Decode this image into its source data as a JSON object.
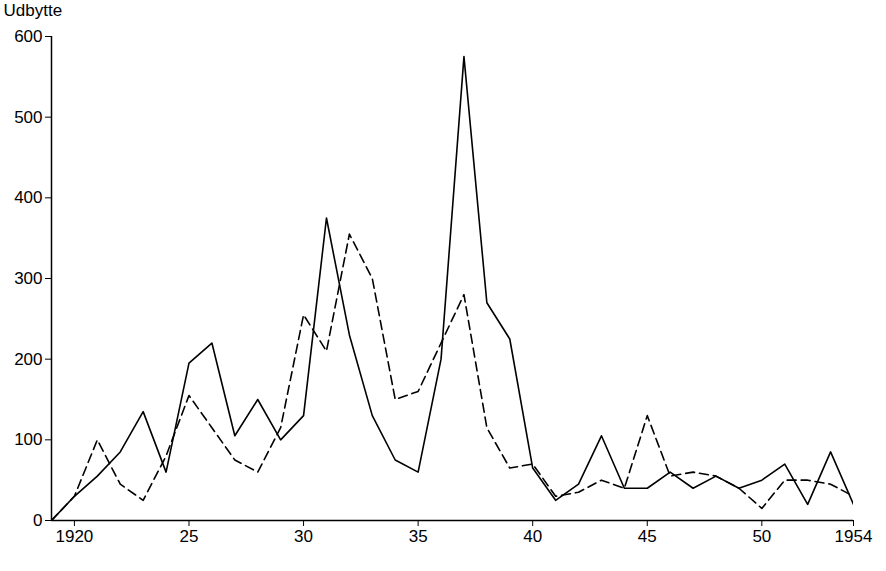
{
  "chart_data": {
    "type": "line",
    "y_label": "Udbytte",
    "x": [
      1919,
      1920,
      1921,
      1922,
      1923,
      1924,
      1925,
      1926,
      1927,
      1928,
      1929,
      1930,
      1931,
      1932,
      1933,
      1934,
      1935,
      1936,
      1937,
      1938,
      1939,
      1940,
      1941,
      1942,
      1943,
      1944,
      1945,
      1946,
      1947,
      1948,
      1949,
      1950,
      1951,
      1952,
      1953,
      1954
    ],
    "series": [
      {
        "color": "#000000",
        "line_style": "solid",
        "values": [
          0,
          30,
          55,
          85,
          135,
          60,
          195,
          220,
          105,
          150,
          100,
          130,
          375,
          230,
          130,
          75,
          60,
          200,
          575,
          270,
          225,
          65,
          25,
          45,
          105,
          40,
          40,
          60,
          40,
          55,
          40,
          50,
          70,
          20,
          85,
          20
        ]
      },
      {
        "color": "#000000",
        "line_style": "dashed",
        "values": [
          0,
          30,
          100,
          45,
          25,
          80,
          155,
          115,
          75,
          60,
          115,
          255,
          210,
          355,
          300,
          150,
          160,
          220,
          280,
          115,
          65,
          70,
          30,
          35,
          50,
          40,
          130,
          55,
          60,
          55,
          40,
          15,
          50,
          50,
          45,
          30
        ]
      }
    ],
    "xlim": [
      1919,
      1954
    ],
    "xticks": [
      1920,
      {
        "value": 1925,
        "label": "25"
      },
      {
        "value": 1930,
        "label": "30"
      },
      {
        "value": 1935,
        "label": "35"
      },
      {
        "value": 1940,
        "label": "40"
      },
      {
        "value": 1945,
        "label": "45"
      },
      {
        "value": 1950,
        "label": "50"
      },
      1954
    ],
    "ylim": [
      0,
      600
    ],
    "yticks": [
      0,
      100,
      200,
      300,
      400,
      500,
      600
    ],
    "grid": false
  }
}
